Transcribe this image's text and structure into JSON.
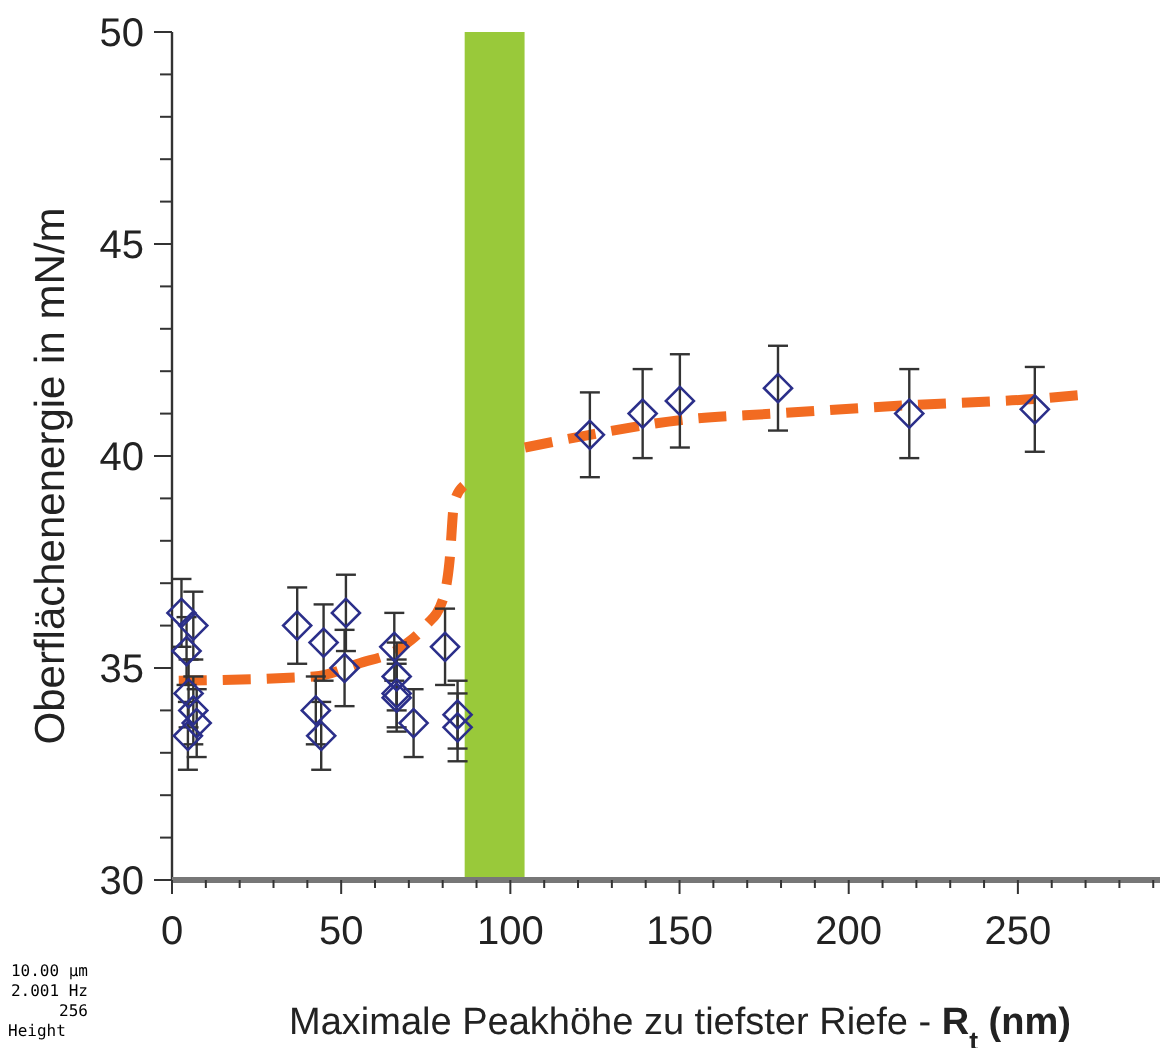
{
  "chart_data": {
    "type": "scatter",
    "xlabel": "Maximale Peakhöhe zu tiefster Riefe - R$_{t}$ (nm)",
    "ylabel": "Oberflächenenergie in mN/m",
    "xlim": [
      0,
      292
    ],
    "ylim": [
      30,
      50
    ],
    "xticks": [
      0,
      {
        "value": 10,
        "label": null
      },
      {
        "value": 20,
        "label": null
      },
      {
        "value": 30,
        "label": null
      },
      {
        "value": 40,
        "label": null
      },
      50,
      {
        "value": 60,
        "label": null
      },
      {
        "value": 70,
        "label": null
      },
      {
        "value": 80,
        "label": null
      },
      {
        "value": 90,
        "label": null
      },
      100,
      {
        "value": 110,
        "label": null
      },
      {
        "value": 120,
        "label": null
      },
      {
        "value": 130,
        "label": null
      },
      {
        "value": 140,
        "label": null
      },
      150,
      {
        "value": 160,
        "label": null
      },
      {
        "value": 170,
        "label": null
      },
      {
        "value": 180,
        "label": null
      },
      {
        "value": 190,
        "label": null
      },
      200,
      {
        "value": 210,
        "label": null
      },
      {
        "value": 220,
        "label": null
      },
      {
        "value": 230,
        "label": null
      },
      {
        "value": 240,
        "label": null
      },
      250,
      {
        "value": 260,
        "label": null
      },
      {
        "value": 270,
        "label": null
      },
      {
        "value": 280,
        "label": null
      },
      {
        "value": 290,
        "label": null
      }
    ],
    "yticks": [
      30,
      {
        "value": 31,
        "label": null
      },
      {
        "value": 32,
        "label": null
      },
      {
        "value": 33,
        "label": null
      },
      {
        "value": 34,
        "label": null
      },
      35,
      {
        "value": 36,
        "label": null
      },
      {
        "value": 37,
        "label": null
      },
      {
        "value": 38,
        "label": null
      },
      {
        "value": 39,
        "label": null
      },
      40,
      {
        "value": 41,
        "label": null
      },
      {
        "value": 42,
        "label": null
      },
      {
        "value": 43,
        "label": null
      },
      {
        "value": 44,
        "label": null
      },
      45,
      {
        "value": 46,
        "label": null
      },
      {
        "value": 47,
        "label": null
      },
      {
        "value": 48,
        "label": null
      },
      {
        "value": 49,
        "label": null
      },
      50
    ],
    "grid": false,
    "series": [
      {
        "type": "line",
        "color": "#f26b21",
        "line_style": "dashed",
        "marker": "none",
        "x": [
          2,
          42,
          55,
          68,
          75,
          80,
          82,
          83.4,
          86.2,
          95,
          104.3,
          123.5,
          150.6,
          178,
          218,
          255.7,
          270.3
        ],
        "values": [
          34.7,
          34.8,
          35.1,
          35.5,
          36.0,
          36.6,
          37.5,
          38.9,
          39.3,
          null,
          40.2,
          40.5,
          40.85,
          41.0,
          41.2,
          41.35,
          41.45
        ]
      },
      {
        "color": "#2b2f8a",
        "marker": "diamond",
        "x": [
          2.8,
          4.3,
          6.3,
          4.9,
          6.3,
          4.7,
          7.3,
          37,
          44.8,
          42.5,
          44.1,
          51.4,
          51,
          65.7,
          66.4,
          66.4,
          66.4,
          71.4,
          80.7,
          84.4,
          84.4,
          123.5,
          139.1,
          150.1,
          179.1,
          217.9,
          255
        ],
        "values": [
          36.3,
          35.4,
          36.0,
          34.4,
          34.0,
          33.4,
          33.7,
          36.0,
          35.6,
          34.0,
          33.4,
          36.3,
          35.0,
          35.5,
          34.8,
          34.4,
          34.3,
          33.7,
          35.5,
          33.9,
          33.6,
          40.5,
          41.0,
          41.3,
          41.6,
          41.0,
          41.1
        ],
        "errors": [
          0.8,
          0.8,
          0.8,
          0.8,
          0.8,
          0.8,
          0.8,
          0.9,
          0.9,
          0.8,
          0.8,
          0.9,
          0.9,
          0.8,
          0.8,
          0.8,
          0.8,
          0.8,
          0.9,
          0.8,
          0.8,
          1.0,
          1.05,
          1.1,
          1.0,
          1.05,
          1.0
        ]
      }
    ],
    "bands": [
      {
        "axis": "x",
        "from": 86.5,
        "to": 104.2,
        "color": "#99c93a"
      }
    ],
    "annotations": [
      "10.00 µm",
      "2.001 Hz",
      "256",
      "Height"
    ]
  }
}
